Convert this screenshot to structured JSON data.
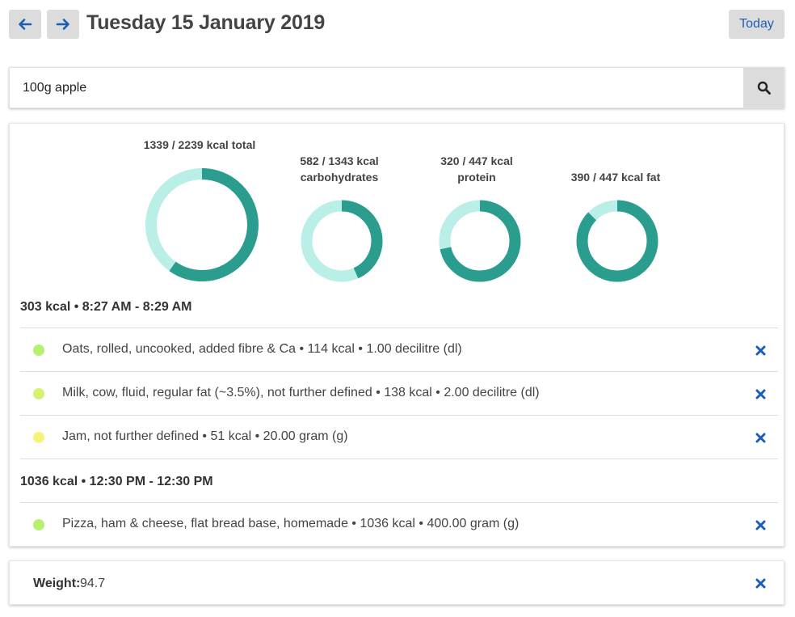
{
  "header": {
    "date_title": "Tuesday 15 January 2019",
    "prev_icon": "arrow-left-icon",
    "next_icon": "arrow-right-icon",
    "today_label": "Today"
  },
  "search": {
    "value": "100g apple",
    "icon": "search-icon"
  },
  "colors": {
    "accent": "#2a9d8f",
    "ring_light": "#b9efe6",
    "link_blue": "#1a5fb4",
    "button_gray": "#dcdcdc"
  },
  "chart_data": [
    {
      "type": "pie",
      "label": "1339 / 2239 kcal total",
      "value": 1339,
      "goal": 2239
    },
    {
      "type": "pie",
      "label": "582 / 1343 kcal carbohydrates",
      "value": 582,
      "goal": 1343
    },
    {
      "type": "pie",
      "label": "320 / 447 kcal protein",
      "value": 320,
      "goal": 447
    },
    {
      "type": "pie",
      "label": "390 / 447 kcal fat",
      "value": 390,
      "goal": 447
    }
  ],
  "meals": [
    {
      "header": "303 kcal • 8:27 AM - 8:29 AM",
      "entries": [
        {
          "text": "Oats, rolled, uncooked, added fibre & Ca • 114 kcal • 1.00 decilitre (dl)",
          "dot_color": "#b5f06e"
        },
        {
          "text": "Milk, cow, fluid, regular fat (~3.5%), not further defined • 138 kcal • 2.00 decilitre (dl)",
          "dot_color": "#d4f270"
        },
        {
          "text": "Jam, not further defined • 51 kcal • 20.00 gram (g)",
          "dot_color": "#f7f27a"
        }
      ]
    },
    {
      "header": "1036 kcal • 12:30 PM - 12:30 PM",
      "entries": [
        {
          "text": "Pizza, ham & cheese, flat bread base, homemade • 1036 kcal • 400.00 gram (g)",
          "dot_color": "#b5f06e"
        }
      ]
    }
  ],
  "delete_icon": "close-icon",
  "weight": {
    "label": "Weight:",
    "value": "94.7"
  }
}
